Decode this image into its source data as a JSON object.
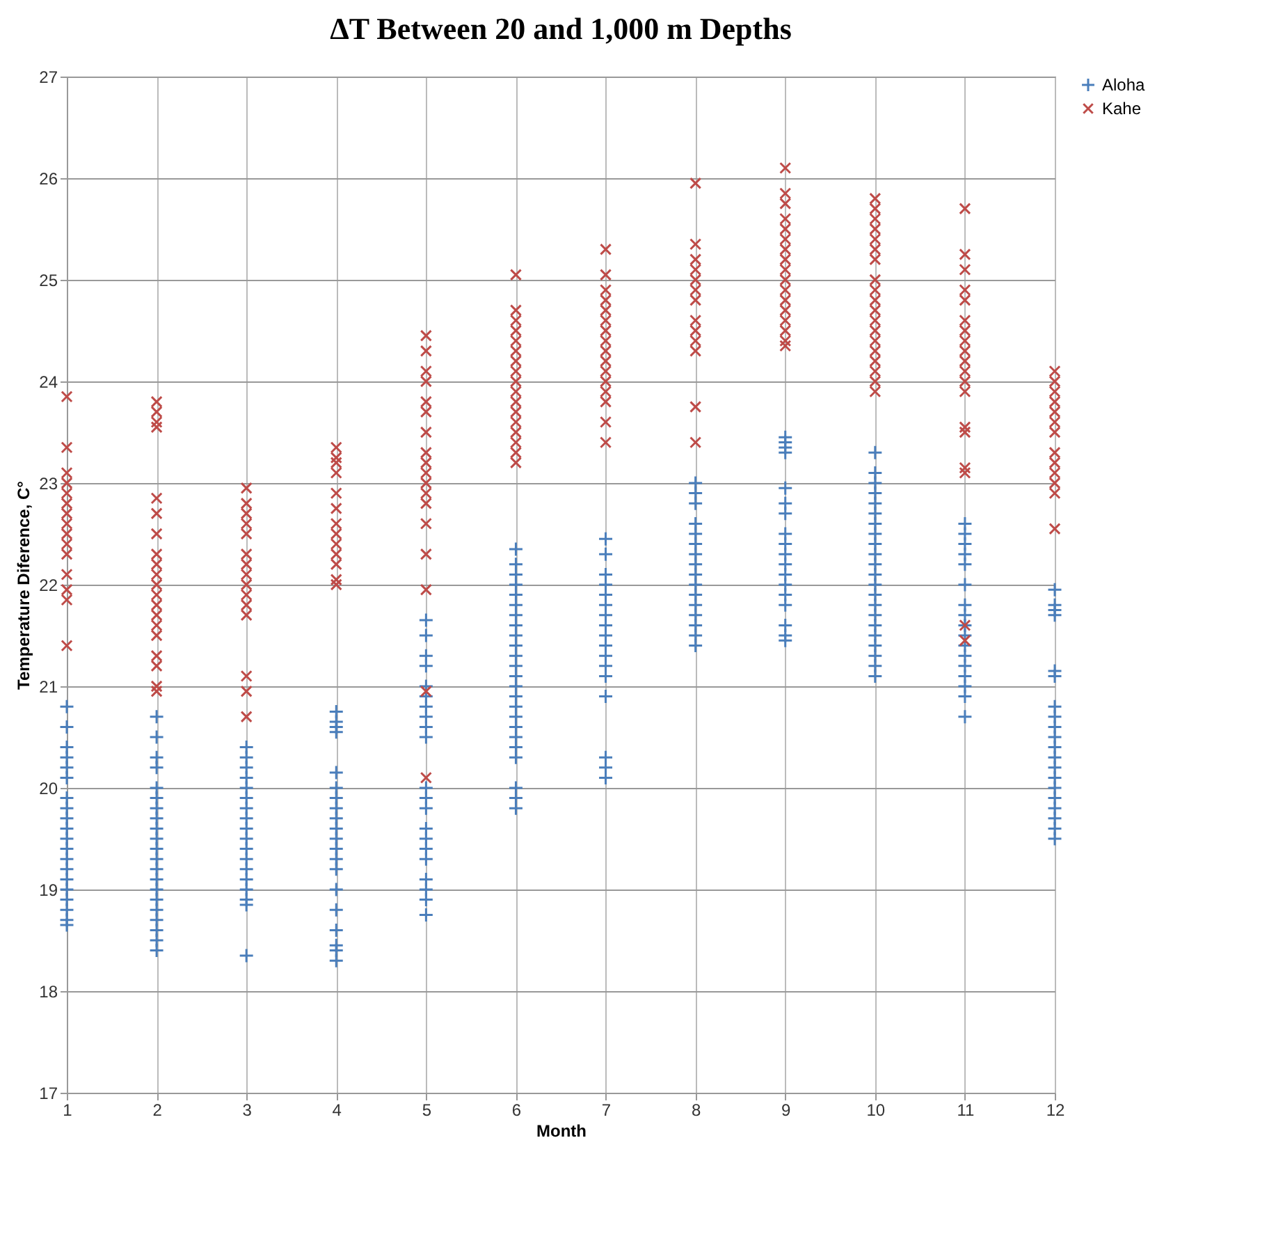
{
  "chart_data": {
    "type": "scatter",
    "title": "ΔT Between  20 and 1,000 m Depths",
    "xlabel": "Month",
    "ylabel": "Temperature Diference, C°",
    "xlim": [
      1,
      12
    ],
    "xticks": [
      1,
      2,
      3,
      4,
      5,
      6,
      7,
      8,
      9,
      10,
      11,
      12
    ],
    "ylim": [
      17,
      27
    ],
    "yticks": [
      17,
      18,
      19,
      20,
      21,
      22,
      23,
      24,
      25,
      26,
      27
    ],
    "grid": true,
    "legend": "right",
    "series": [
      {
        "name": "Aloha",
        "color": "#4a7ebb",
        "marker": "cross",
        "x": [
          1,
          1,
          1,
          1,
          1,
          1,
          1,
          1,
          1,
          1,
          1,
          1,
          1,
          1,
          1,
          1,
          1,
          1,
          1,
          1,
          2,
          2,
          2,
          2,
          2,
          2,
          2,
          2,
          2,
          2,
          2,
          2,
          2,
          2,
          2,
          2,
          2,
          2,
          2,
          2,
          2,
          3,
          3,
          3,
          3,
          3,
          3,
          3,
          3,
          3,
          3,
          3,
          3,
          3,
          3,
          3,
          3,
          3,
          3,
          4,
          4,
          4,
          4,
          4,
          4,
          4,
          4,
          4,
          4,
          4,
          4,
          4,
          4,
          4,
          4,
          4,
          4,
          4,
          4,
          5,
          5,
          5,
          5,
          5,
          5,
          5,
          5,
          5,
          5,
          5,
          5,
          5,
          5,
          5,
          5,
          5,
          5,
          5,
          5,
          5,
          6,
          6,
          6,
          6,
          6,
          6,
          6,
          6,
          6,
          6,
          6,
          6,
          6,
          6,
          6,
          6,
          6,
          6,
          6,
          6,
          6,
          6,
          6,
          6,
          7,
          7,
          7,
          7,
          7,
          7,
          7,
          7,
          7,
          7,
          7,
          7,
          7,
          7,
          7,
          7,
          7,
          8,
          8,
          8,
          8,
          8,
          8,
          8,
          8,
          8,
          8,
          8,
          8,
          8,
          8,
          8,
          8,
          9,
          9,
          9,
          9,
          9,
          9,
          9,
          9,
          9,
          9,
          9,
          9,
          9,
          9,
          9,
          9,
          9,
          9,
          10,
          10,
          10,
          10,
          10,
          10,
          10,
          10,
          10,
          10,
          10,
          10,
          10,
          10,
          10,
          10,
          10,
          10,
          10,
          10,
          10,
          10,
          11,
          11,
          11,
          11,
          11,
          11,
          11,
          11,
          11,
          11,
          11,
          11,
          11,
          11,
          11,
          11,
          11,
          12,
          12,
          12,
          12,
          12,
          12,
          12,
          12,
          12,
          12,
          12,
          12,
          12,
          12,
          12,
          12,
          12,
          12,
          12,
          12
        ],
        "values": [
          20.8,
          20.6,
          20.4,
          20.3,
          20.2,
          20.1,
          19.9,
          19.8,
          19.7,
          19.6,
          19.5,
          19.4,
          19.3,
          19.2,
          19.1,
          19.0,
          18.9,
          18.8,
          18.7,
          18.65,
          20.7,
          20.5,
          20.3,
          20.2,
          20.0,
          19.9,
          19.8,
          19.7,
          19.6,
          19.5,
          19.4,
          19.3,
          19.2,
          19.1,
          19.0,
          18.9,
          18.8,
          18.7,
          18.6,
          18.5,
          18.4,
          20.4,
          20.3,
          20.2,
          20.1,
          20.0,
          19.9,
          19.8,
          19.7,
          19.6,
          19.5,
          19.4,
          19.3,
          19.2,
          19.1,
          19.0,
          18.9,
          18.85,
          18.35,
          20.75,
          20.65,
          20.6,
          20.55,
          20.15,
          20.0,
          19.9,
          19.8,
          19.7,
          19.6,
          19.5,
          19.4,
          19.3,
          19.2,
          19.0,
          18.8,
          18.6,
          18.45,
          18.4,
          18.3,
          21.65,
          21.5,
          21.3,
          21.2,
          21.0,
          20.9,
          20.8,
          20.7,
          20.6,
          20.5,
          20.0,
          19.9,
          19.8,
          19.6,
          19.5,
          19.4,
          19.3,
          19.1,
          19.0,
          18.9,
          18.75,
          22.35,
          22.2,
          22.1,
          22.0,
          21.9,
          21.8,
          21.7,
          21.6,
          21.5,
          21.4,
          21.3,
          21.2,
          21.1,
          21.0,
          20.9,
          20.8,
          20.7,
          20.6,
          20.5,
          20.4,
          20.3,
          20.0,
          19.9,
          19.8,
          22.45,
          22.3,
          22.1,
          22.0,
          21.9,
          21.8,
          21.7,
          21.6,
          21.5,
          21.4,
          21.3,
          21.2,
          21.1,
          20.9,
          20.3,
          20.2,
          20.1,
          23.0,
          22.9,
          22.8,
          22.6,
          22.5,
          22.4,
          22.3,
          22.2,
          22.1,
          22.0,
          21.9,
          21.8,
          21.7,
          21.6,
          21.5,
          21.4,
          23.45,
          23.4,
          23.35,
          23.3,
          22.95,
          22.8,
          22.7,
          22.5,
          22.4,
          22.3,
          22.2,
          22.1,
          22.0,
          21.9,
          21.8,
          21.6,
          21.5,
          21.45,
          23.3,
          23.1,
          23.0,
          22.9,
          22.8,
          22.7,
          22.6,
          22.5,
          22.4,
          22.3,
          22.2,
          22.1,
          22.0,
          21.9,
          21.8,
          21.7,
          21.6,
          21.5,
          21.4,
          21.3,
          21.2,
          21.1,
          22.6,
          22.5,
          22.4,
          22.3,
          22.2,
          22.0,
          21.8,
          21.7,
          21.6,
          21.5,
          21.4,
          21.3,
          21.2,
          21.1,
          21.0,
          20.9,
          20.7,
          21.95,
          21.8,
          21.75,
          21.7,
          21.15,
          21.1,
          20.8,
          20.7,
          20.6,
          20.5,
          20.4,
          20.3,
          20.2,
          20.1,
          20.0,
          19.9,
          19.8,
          19.7,
          19.6,
          19.5
        ]
      },
      {
        "name": "Kahe",
        "color": "#be4b48",
        "marker": "x",
        "x": [
          1,
          1,
          1,
          1,
          1,
          1,
          1,
          1,
          1,
          1,
          1,
          1,
          1,
          1,
          1,
          2,
          2,
          2,
          2,
          2,
          2,
          2,
          2,
          2,
          2,
          2,
          2,
          2,
          2,
          2,
          2,
          2,
          2,
          2,
          2,
          3,
          3,
          3,
          3,
          3,
          3,
          3,
          3,
          3,
          3,
          3,
          3,
          3,
          3,
          3,
          4,
          4,
          4,
          4,
          4,
          4,
          4,
          4,
          4,
          4,
          4,
          4,
          4,
          5,
          5,
          5,
          5,
          5,
          5,
          5,
          5,
          5,
          5,
          5,
          5,
          5,
          5,
          5,
          5,
          5,
          5,
          6,
          6,
          6,
          6,
          6,
          6,
          6,
          6,
          6,
          6,
          6,
          6,
          6,
          6,
          6,
          6,
          6,
          7,
          7,
          7,
          7,
          7,
          7,
          7,
          7,
          7,
          7,
          7,
          7,
          7,
          7,
          7,
          7,
          8,
          8,
          8,
          8,
          8,
          8,
          8,
          8,
          8,
          8,
          8,
          8,
          8,
          9,
          9,
          9,
          9,
          9,
          9,
          9,
          9,
          9,
          9,
          9,
          9,
          9,
          9,
          9,
          9,
          9,
          10,
          10,
          10,
          10,
          10,
          10,
          10,
          10,
          10,
          10,
          10,
          10,
          10,
          10,
          10,
          10,
          10,
          10,
          10,
          11,
          11,
          11,
          11,
          11,
          11,
          11,
          11,
          11,
          11,
          11,
          11,
          11,
          11,
          11,
          11,
          11,
          11,
          11,
          12,
          12,
          12,
          12,
          12,
          12,
          12,
          12,
          12,
          12,
          12,
          12,
          12
        ],
        "values": [
          23.85,
          23.35,
          23.1,
          23.0,
          22.9,
          22.8,
          22.7,
          22.6,
          22.5,
          22.4,
          22.3,
          22.1,
          21.95,
          21.85,
          21.4,
          23.8,
          23.7,
          23.6,
          23.55,
          22.85,
          22.7,
          22.5,
          22.3,
          22.2,
          22.1,
          22.0,
          21.9,
          21.8,
          21.7,
          21.6,
          21.5,
          21.3,
          21.2,
          21.0,
          20.95,
          22.95,
          22.8,
          22.7,
          22.6,
          22.5,
          22.3,
          22.2,
          22.1,
          22.0,
          21.9,
          21.8,
          21.7,
          21.1,
          20.95,
          20.7,
          23.35,
          23.25,
          23.2,
          23.1,
          22.9,
          22.75,
          22.6,
          22.5,
          22.4,
          22.3,
          22.2,
          22.05,
          22.0,
          24.45,
          24.3,
          24.1,
          24.0,
          23.8,
          23.7,
          23.5,
          23.3,
          23.2,
          23.1,
          23.0,
          22.9,
          22.8,
          22.6,
          22.3,
          21.95,
          20.95,
          20.1,
          25.05,
          24.7,
          24.6,
          24.5,
          24.4,
          24.3,
          24.2,
          24.1,
          24.0,
          23.9,
          23.8,
          23.7,
          23.6,
          23.5,
          23.4,
          23.3,
          23.2,
          25.3,
          25.05,
          24.9,
          24.8,
          24.7,
          24.6,
          24.5,
          24.4,
          24.3,
          24.2,
          24.1,
          24.0,
          23.9,
          23.8,
          23.6,
          23.4,
          25.95,
          25.35,
          25.2,
          25.1,
          25.0,
          24.9,
          24.8,
          24.6,
          24.5,
          24.4,
          24.3,
          23.75,
          23.4,
          26.1,
          25.85,
          25.75,
          25.6,
          25.5,
          25.4,
          25.3,
          25.2,
          25.1,
          25.0,
          24.9,
          24.8,
          24.7,
          24.6,
          24.5,
          24.4,
          24.35,
          25.8,
          25.7,
          25.6,
          25.5,
          25.4,
          25.3,
          25.2,
          25.0,
          24.9,
          24.8,
          24.7,
          24.6,
          24.5,
          24.4,
          24.3,
          24.2,
          24.1,
          24.0,
          23.9,
          25.7,
          25.25,
          25.1,
          24.9,
          24.8,
          24.6,
          24.5,
          24.4,
          24.3,
          24.2,
          24.1,
          24.0,
          23.9,
          23.55,
          23.5,
          23.15,
          23.1,
          21.6,
          21.45,
          24.1,
          24.0,
          23.9,
          23.8,
          23.7,
          23.6,
          23.5,
          23.3,
          23.2,
          23.1,
          23.0,
          22.9,
          22.55
        ]
      }
    ]
  }
}
